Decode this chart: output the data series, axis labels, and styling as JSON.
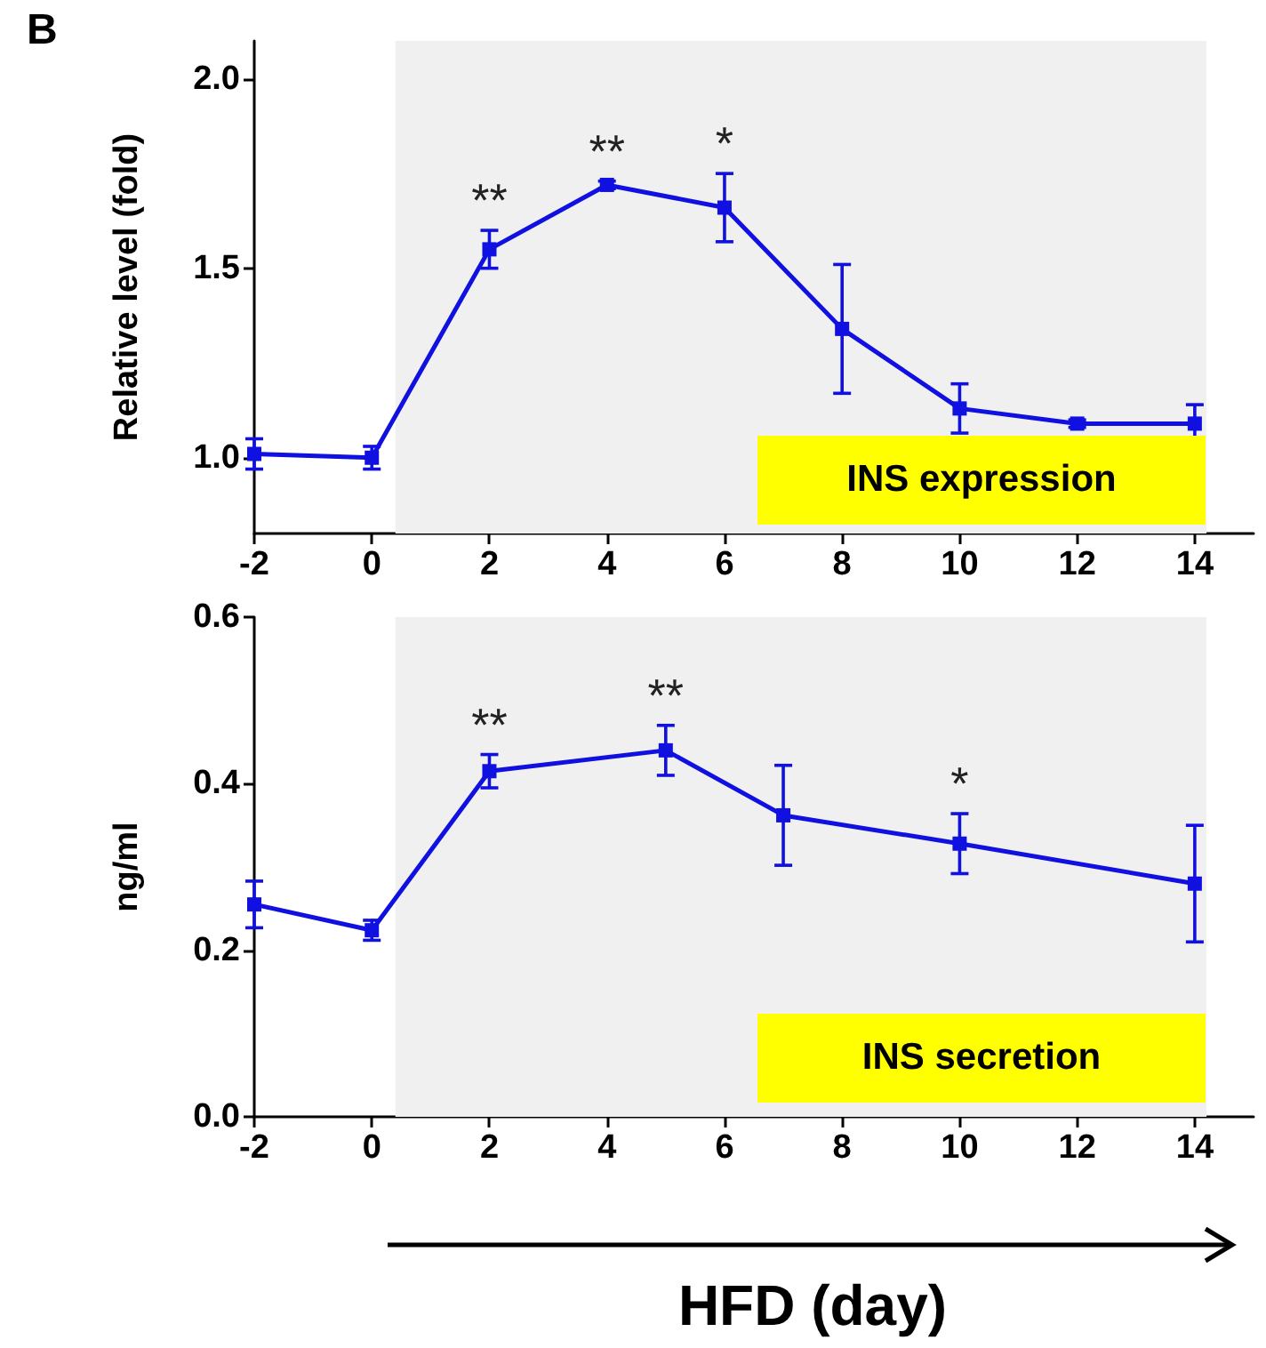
{
  "chart_data": [
    {
      "type": "line",
      "title": "B",
      "ylabel": "Relative level (fold)",
      "color": "#1010e0",
      "marker": "square",
      "grid": false,
      "x": [
        -2,
        0,
        2,
        4,
        6,
        8,
        10,
        12,
        14
      ],
      "values": [
        1.01,
        1.0,
        1.55,
        1.72,
        1.66,
        1.34,
        1.13,
        1.09,
        1.09
      ],
      "errors": [
        0.04,
        0.03,
        0.05,
        0.01,
        0.09,
        0.17,
        0.065,
        0.01,
        0.05
      ],
      "xlim": [
        -2,
        15
      ],
      "xticks": [
        -2,
        0,
        2,
        4,
        6,
        8,
        10,
        12,
        14
      ],
      "ylim": [
        0.8,
        2.1
      ],
      "yticks": [
        {
          "value": 1.0,
          "label": "1.0"
        },
        {
          "value": 1.5,
          "label": "1.5"
        },
        {
          "value": 2.0,
          "label": "2.0"
        }
      ],
      "bands": [
        {
          "axis": "x",
          "from": 0.4,
          "to": 14.2,
          "color": "#f0f0f0"
        }
      ],
      "annotations": [
        {
          "text": "**",
          "x": 2,
          "y": 1.55
        },
        {
          "text": "**",
          "x": 4,
          "y": 1.72
        },
        {
          "text": "*",
          "x": 6,
          "y": 1.66
        },
        "INS expression"
      ]
    },
    {
      "type": "line",
      "xlabel": "HFD (day)",
      "ylabel": "ng/ml",
      "color": "#1010e0",
      "marker": "square",
      "grid": false,
      "x": [
        -2,
        0,
        2,
        5,
        7,
        10,
        14
      ],
      "values": [
        0.255,
        0.224,
        0.415,
        0.44,
        0.362,
        0.328,
        0.28
      ],
      "errors": [
        0.028,
        0.012,
        0.02,
        0.03,
        0.06,
        0.036,
        0.07
      ],
      "xlim": [
        -2,
        15
      ],
      "xticks": [
        -2,
        0,
        2,
        4,
        6,
        8,
        10,
        12,
        14
      ],
      "ylim": [
        0,
        0.6
      ],
      "yticks": [
        {
          "value": 0,
          "label": "0.0"
        },
        {
          "value": 0.2,
          "label": "0.2"
        },
        {
          "value": 0.4,
          "label": "0.4"
        },
        {
          "value": 0.6,
          "label": "0.6"
        }
      ],
      "bands": [
        {
          "axis": "x",
          "from": 0.4,
          "to": 14.2,
          "color": "#f0f0f0"
        }
      ],
      "annotations": [
        {
          "text": "**",
          "x": 2,
          "y": 0.415
        },
        {
          "text": "**",
          "x": 5,
          "y": 0.44
        },
        {
          "text": "*",
          "x": 10,
          "y": 0.328
        },
        "INS secretion"
      ]
    }
  ]
}
